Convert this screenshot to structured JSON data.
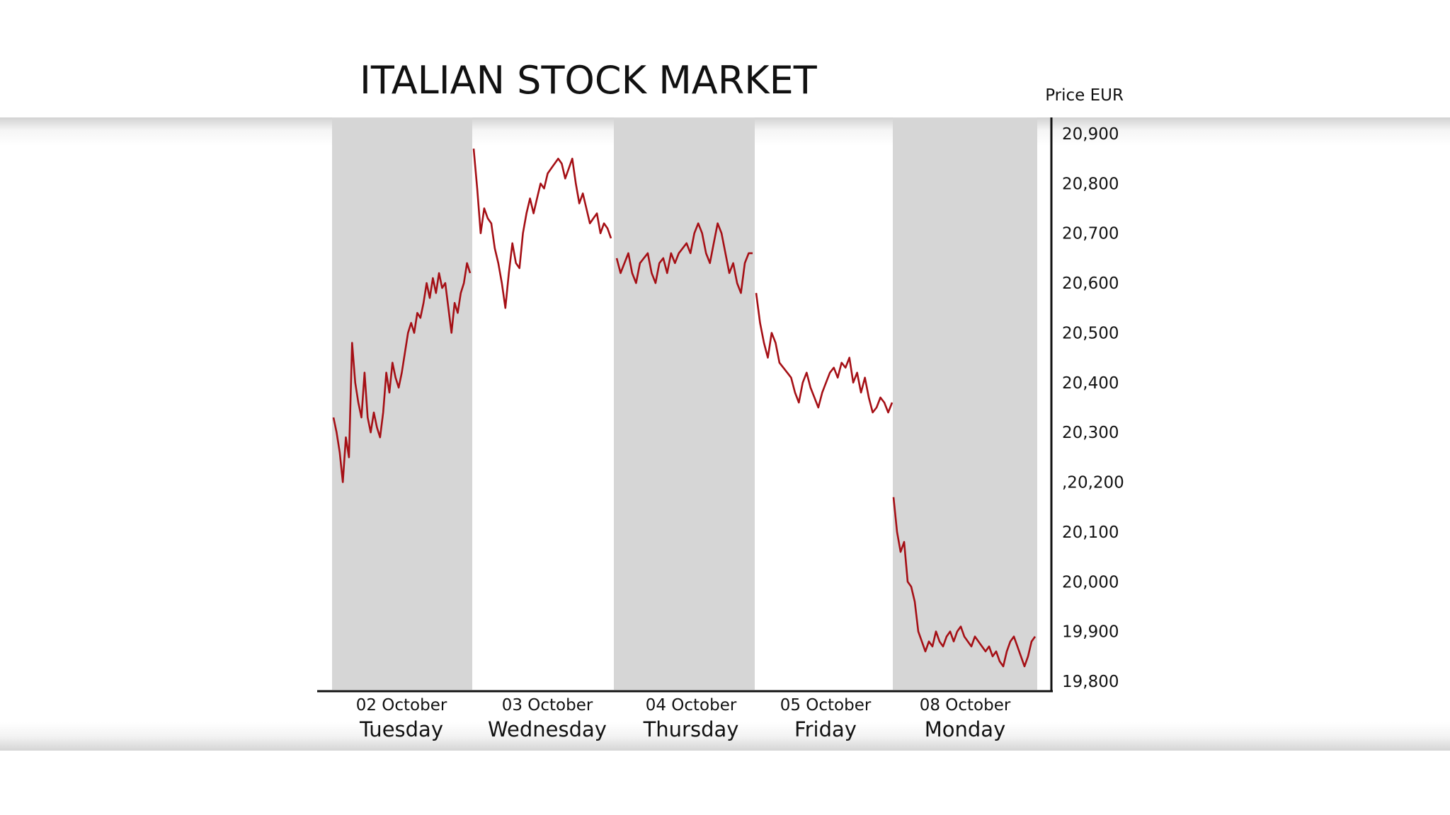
{
  "chart_data": {
    "type": "line",
    "title": "ITALIAN STOCK MARKET",
    "ylabel": "Price EUR",
    "ylim": [
      19800,
      20900
    ],
    "y_ticks": [
      "20,900",
      "20,800",
      "20,700",
      "20,600",
      "20,500",
      "20,400",
      "20,300",
      ",20,200",
      "20,100",
      "20,000",
      "19,900",
      "19,800"
    ],
    "categories": [
      {
        "date": "02 October",
        "day": "Tuesday",
        "shaded": true
      },
      {
        "date": "03 October",
        "day": "Wednesday",
        "shaded": false
      },
      {
        "date": "04 October",
        "day": "Thursday",
        "shaded": true
      },
      {
        "date": "05 October",
        "day": "Friday",
        "shaded": false
      },
      {
        "date": "08 October",
        "day": "Monday",
        "shaded": true
      }
    ],
    "series": [
      {
        "color": "#a50f15",
        "days": [
          [
            20330,
            20300,
            20260,
            20200,
            20290,
            20250,
            20480,
            20400,
            20360,
            20330,
            20420,
            20330,
            20300,
            20340,
            20310,
            20290,
            20340,
            20420,
            20380,
            20440,
            20410,
            20390,
            20420,
            20460,
            20500,
            20520,
            20500,
            20540,
            20530,
            20560,
            20600,
            20570,
            20610,
            20580,
            20620,
            20590,
            20600,
            20550,
            20500,
            20560,
            20540,
            20580,
            20600,
            20640,
            20620
          ],
          [
            20870,
            20790,
            20700,
            20750,
            20730,
            20720,
            20670,
            20640,
            20600,
            20550,
            20620,
            20680,
            20640,
            20630,
            20700,
            20740,
            20770,
            20740,
            20770,
            20800,
            20790,
            20820,
            20830,
            20840,
            20850,
            20840,
            20810,
            20830,
            20850,
            20800,
            20760,
            20780,
            20750,
            20720,
            20730,
            20740,
            20700,
            20720,
            20710,
            20690
          ],
          [
            20650,
            20620,
            20640,
            20660,
            20620,
            20600,
            20640,
            20650,
            20660,
            20620,
            20600,
            20640,
            20650,
            20620,
            20660,
            20640,
            20660,
            20670,
            20680,
            20660,
            20700,
            20720,
            20700,
            20660,
            20640,
            20680,
            20720,
            20700,
            20660,
            20620,
            20640,
            20600,
            20580,
            20640,
            20660,
            20660
          ],
          [
            20580,
            20520,
            20480,
            20450,
            20500,
            20480,
            20440,
            20430,
            20420,
            20410,
            20380,
            20360,
            20400,
            20420,
            20390,
            20370,
            20350,
            20380,
            20400,
            20420,
            20430,
            20410,
            20440,
            20430,
            20450,
            20400,
            20420,
            20380,
            20410,
            20370,
            20340,
            20350,
            20370,
            20360,
            20340,
            20360
          ],
          [
            20170,
            20100,
            20060,
            20080,
            20000,
            19990,
            19960,
            19900,
            19880,
            19860,
            19880,
            19870,
            19900,
            19880,
            19870,
            19890,
            19900,
            19880,
            19900,
            19910,
            19890,
            19880,
            19870,
            19890,
            19880,
            19870,
            19860,
            19870,
            19850,
            19860,
            19840,
            19830,
            19860,
            19880,
            19890,
            19870,
            19850,
            19830,
            19850,
            19880,
            19890
          ]
        ]
      }
    ]
  }
}
